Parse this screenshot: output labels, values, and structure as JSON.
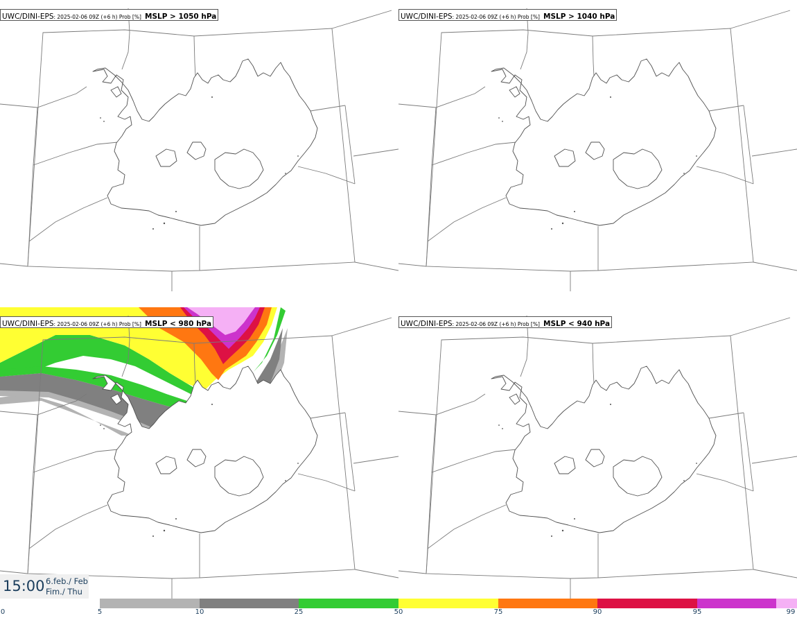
{
  "panels": [
    {
      "model": "UWC/DINI-EPS",
      "run": ": 2025-02-06 09Z (+6 h) Prob [%]",
      "variable": "MSLP > 1050 hPa"
    },
    {
      "model": "UWC/DINI-EPS",
      "run": ": 2025-02-06 09Z (+6 h) Prob [%]",
      "variable": "MSLP > 1040 hPa"
    },
    {
      "model": "UWC/DINI-EPS",
      "run": ": 2025-02-06 09Z (+6 h) Prob [%]",
      "variable": "MSLP < 980 hPa"
    },
    {
      "model": "UWC/DINI-EPS",
      "run": ": 2025-02-06 09Z (+6 h) Prob [%]",
      "variable": "MSLP < 940 hPa"
    }
  ],
  "valid_time": {
    "time": "15:00",
    "date_line1": "6.feb./ Feb",
    "date_line2": "Fim./ Thu"
  },
  "colorbar": {
    "ticks": [
      "0",
      "5",
      "10",
      "25",
      "50",
      "75",
      "90",
      "95",
      "99"
    ],
    "colors": [
      "#b3b3b3",
      "#808080",
      "#33cc33",
      "#ffff33",
      "#ff7711",
      "#dd1144",
      "#cc33cc",
      "#f5b0f5"
    ]
  },
  "colors": {
    "coast": "#505050",
    "grid": "#7a7a7a",
    "text_accent": "#1a3d5c"
  }
}
